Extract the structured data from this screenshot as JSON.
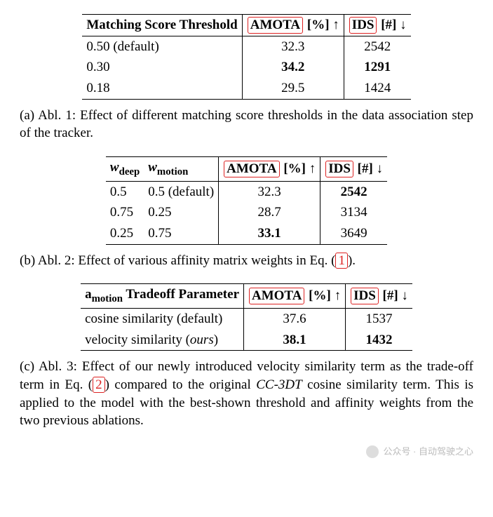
{
  "table1": {
    "headers": {
      "col1": "Matching Score Threshold",
      "amota_box": "AMOTA",
      "amota_suffix": " [%] ↑",
      "ids_box": "IDS",
      "ids_suffix": " [#] ↓"
    },
    "rows": [
      {
        "c1": "0.50 (default)",
        "amota": "32.3",
        "ids": "2542",
        "amota_bold": false,
        "ids_bold": false
      },
      {
        "c1": "0.30",
        "amota": "34.2",
        "ids": "1291",
        "amota_bold": true,
        "ids_bold": true
      },
      {
        "c1": "0.18",
        "amota": "29.5",
        "ids": "1424",
        "amota_bold": false,
        "ids_bold": false
      }
    ],
    "caption_prefix": "(a) Abl. 1: Effect of different matching score thresholds in the data association step of the tracker."
  },
  "table2": {
    "headers": {
      "wdeep_prefix": "w",
      "wdeep_sub": "deep",
      "wmotion_prefix": "w",
      "wmotion_sub": "motion",
      "amota_box": "AMOTA",
      "amota_suffix": " [%] ↑",
      "ids_box": "IDS",
      "ids_suffix": " [#] ↓"
    },
    "rows": [
      {
        "c1": "0.5",
        "c2": "0.5 (default)",
        "amota": "32.3",
        "ids": "2542",
        "amota_bold": false,
        "ids_bold": true
      },
      {
        "c1": "0.75",
        "c2": "0.25",
        "amota": "28.7",
        "ids": "3134",
        "amota_bold": false,
        "ids_bold": false
      },
      {
        "c1": "0.25",
        "c2": "0.75",
        "amota": "33.1",
        "ids": "3649",
        "amota_bold": true,
        "ids_bold": false
      }
    ],
    "caption_text": "(b) Abl. 2: Effect of various affinity matrix weights in Eq. (",
    "caption_ref": "1",
    "caption_after": ")."
  },
  "table3": {
    "headers": {
      "col1_prefix": "a",
      "col1_sub": "motion",
      "col1_rest": " Tradeoff Parameter",
      "amota_box": "AMOTA",
      "amota_suffix": " [%] ↑",
      "ids_box": "IDS",
      "ids_suffix": " [#] ↓"
    },
    "rows": [
      {
        "c1a": "cosine similarity (default)",
        "amota": "37.6",
        "ids": "1537",
        "amota_bold": false,
        "ids_bold": false
      },
      {
        "c1a": "velocity similarity (",
        "c1b": "ours",
        "c1c": ")",
        "amota": "38.1",
        "ids": "1432",
        "amota_bold": true,
        "ids_bold": true
      }
    ],
    "caption_before": "(c) Abl. 3: Effect of our newly introduced velocity similarity term as the trade-off term in Eq. (",
    "caption_ref": "2",
    "caption_mid": ") compared to the original ",
    "caption_italic": "CC-3DT",
    "caption_after": " cosine similarity term. This is applied to the model with the best-shown threshold and affinity weights from the two previous ablations."
  },
  "watermark": {
    "text": "公众号 · 自动驾驶之心"
  }
}
